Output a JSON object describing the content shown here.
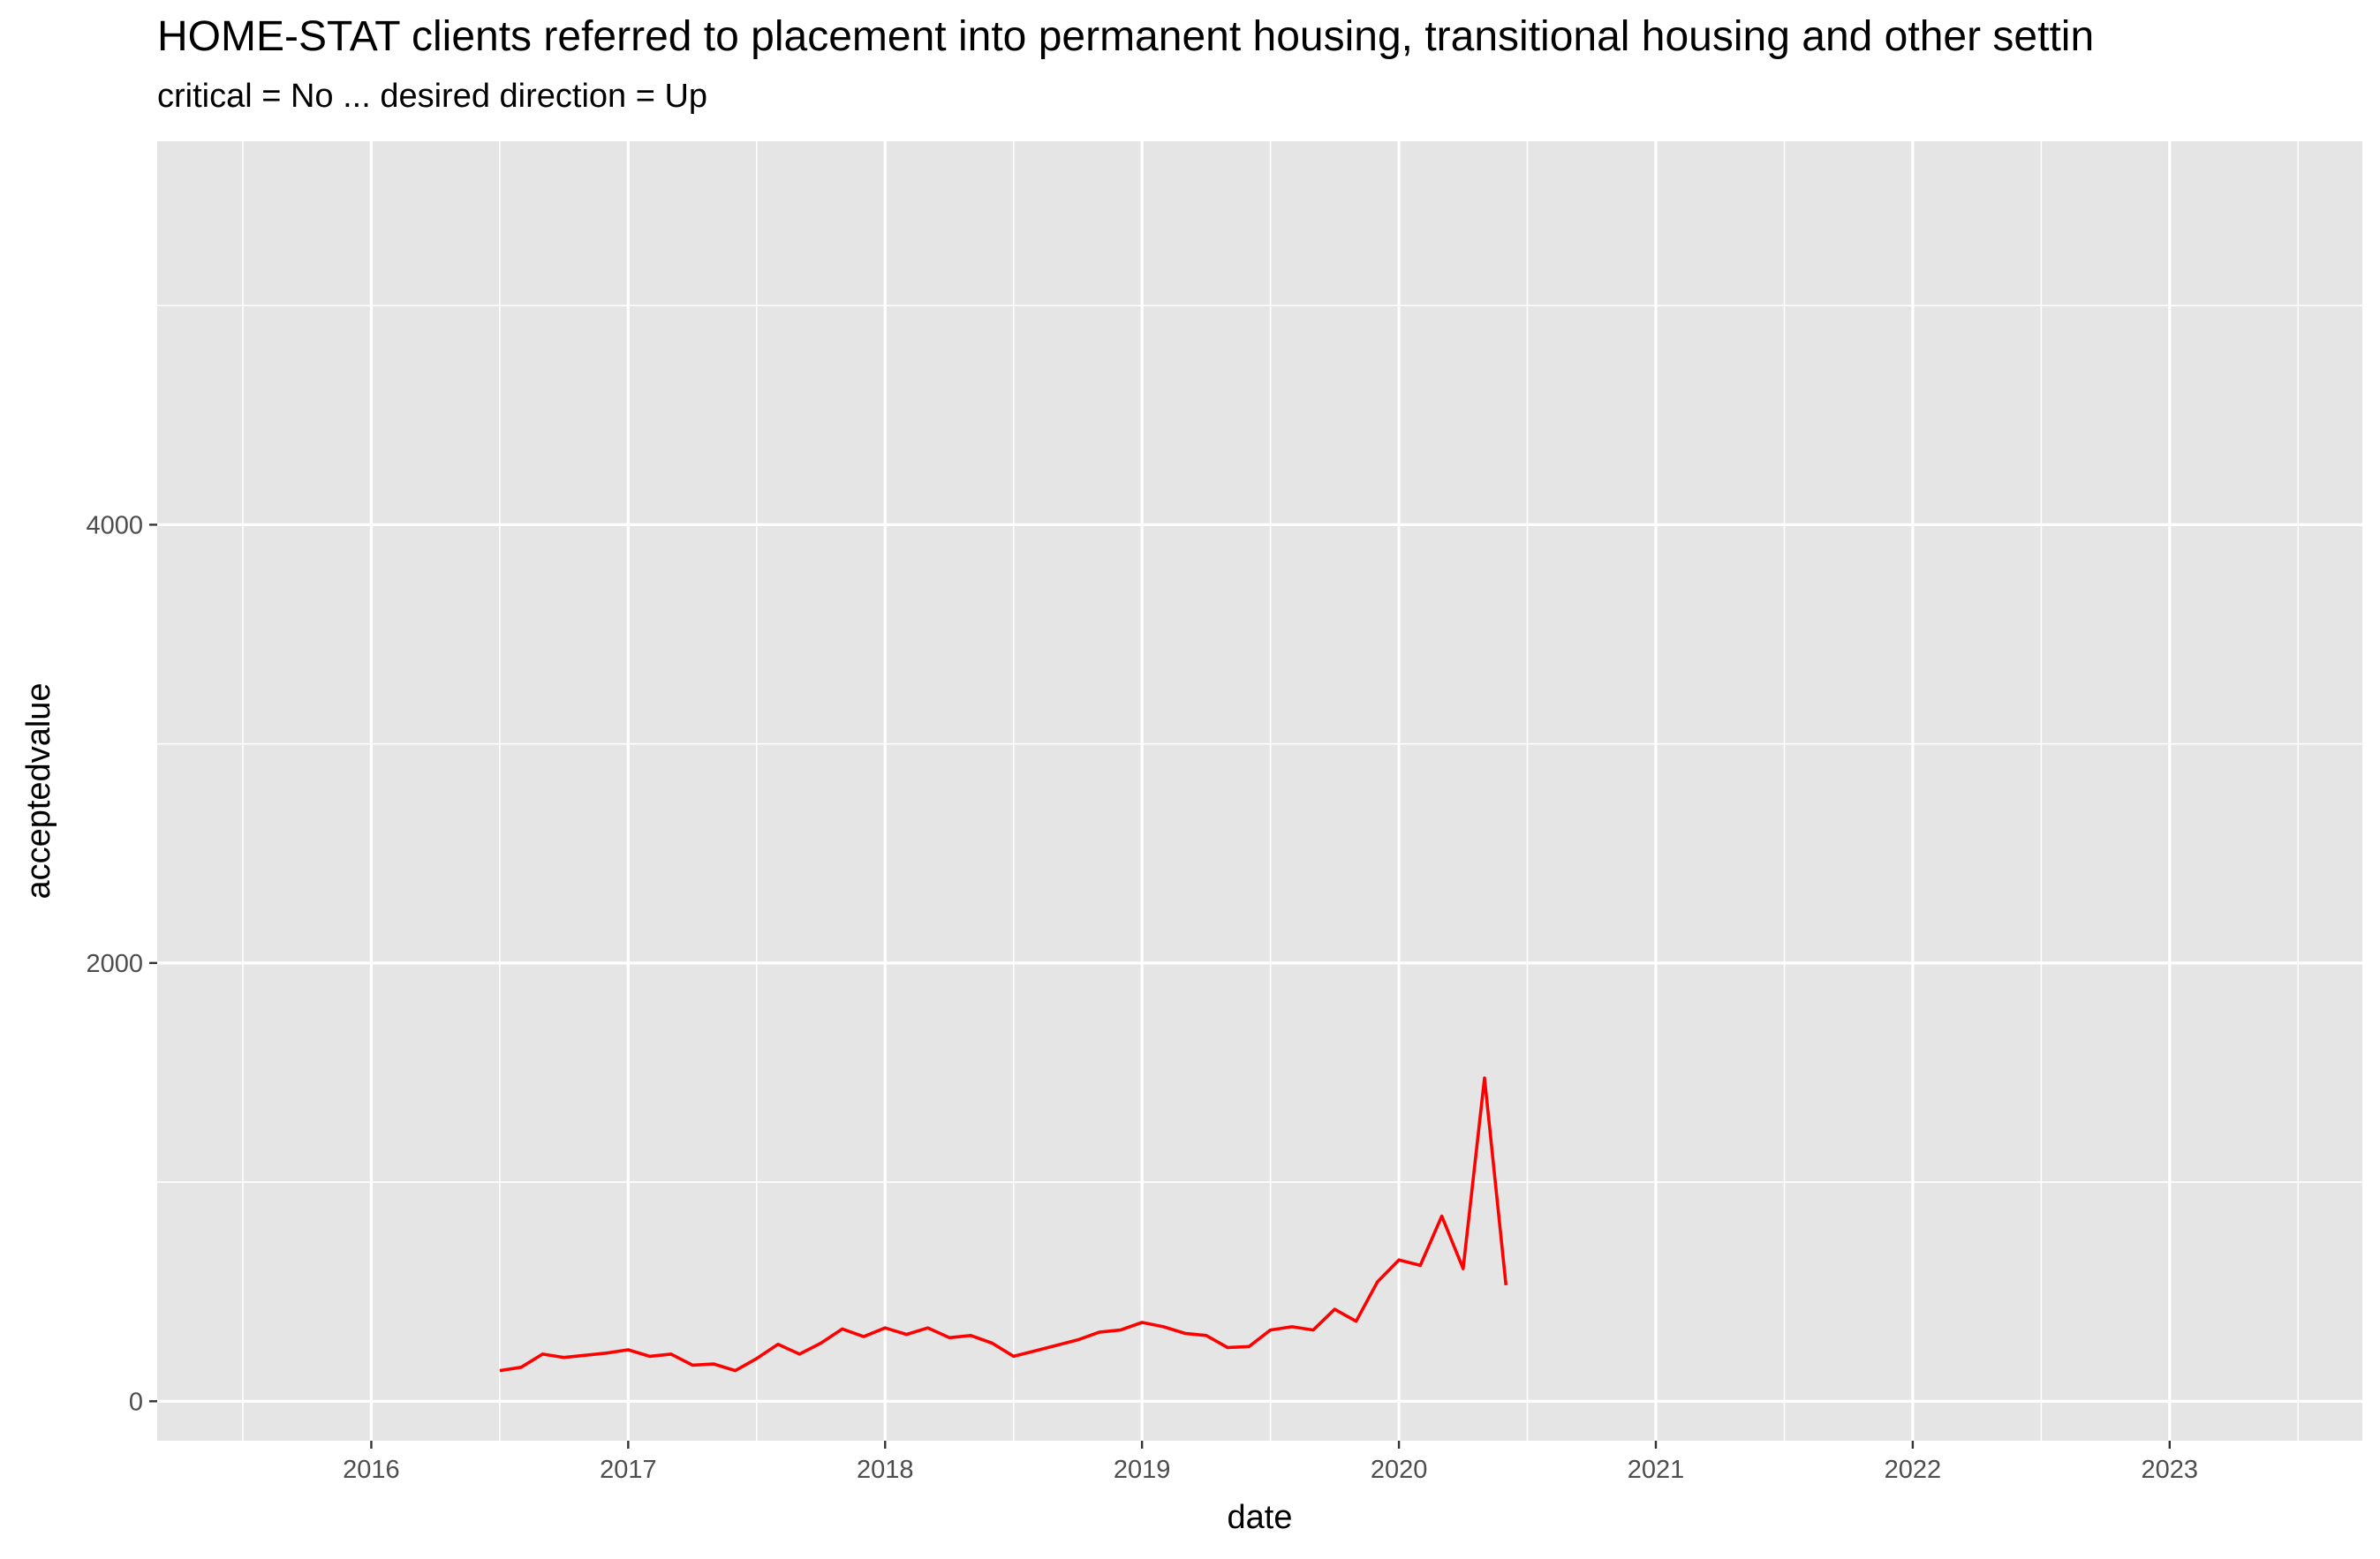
{
  "title": "HOME-STAT clients referred to placement into permanent housing, transitional housing and other settin",
  "subtitle": "critical = No ... desired direction = Up",
  "colors": {
    "panel": "#e5e5e5",
    "grid": "#ffffff",
    "line": "#ff0000"
  },
  "chart_data": {
    "type": "line",
    "xlabel": "date",
    "ylabel": "acceptedvalue",
    "x_tick_labels": [
      "2016",
      "2017",
      "2018",
      "2019",
      "2020",
      "2021",
      "2022",
      "2023"
    ],
    "y_tick_labels": [
      "0",
      "2000",
      "4000"
    ],
    "xlim": [
      "2015-03",
      "2023-10"
    ],
    "ylim": [
      -180,
      5750
    ],
    "grid": true,
    "legend": "none",
    "series": [
      {
        "color": "#ff0000",
        "x": [
          "2016-07",
          "2016-08",
          "2016-09",
          "2016-10",
          "2016-11",
          "2016-12",
          "2017-01",
          "2017-02",
          "2017-03",
          "2017-04",
          "2017-05",
          "2017-06",
          "2017-07",
          "2017-08",
          "2017-09",
          "2017-10",
          "2017-11",
          "2017-12",
          "2018-01",
          "2018-02",
          "2018-03",
          "2018-04",
          "2018-05",
          "2018-06",
          "2018-07",
          "2018-08",
          "2018-09",
          "2018-10",
          "2018-11",
          "2018-12",
          "2019-01",
          "2019-02",
          "2019-03",
          "2019-04",
          "2019-05",
          "2019-06",
          "2019-07",
          "2019-08",
          "2019-09",
          "2019-10",
          "2019-11",
          "2019-12",
          "2020-01",
          "2020-02",
          "2020-03",
          "2020-04",
          "2020-05",
          "2020-06"
        ],
        "y": [
          140,
          155,
          215,
          200,
          210,
          220,
          235,
          205,
          215,
          165,
          170,
          140,
          195,
          260,
          215,
          265,
          330,
          295,
          335,
          305,
          335,
          290,
          300,
          265,
          205,
          230,
          255,
          280,
          315,
          325,
          360,
          340,
          310,
          300,
          245,
          250,
          325,
          340,
          325,
          420,
          365,
          545,
          645,
          620,
          845,
          605,
          1475,
          530
        ]
      }
    ]
  }
}
